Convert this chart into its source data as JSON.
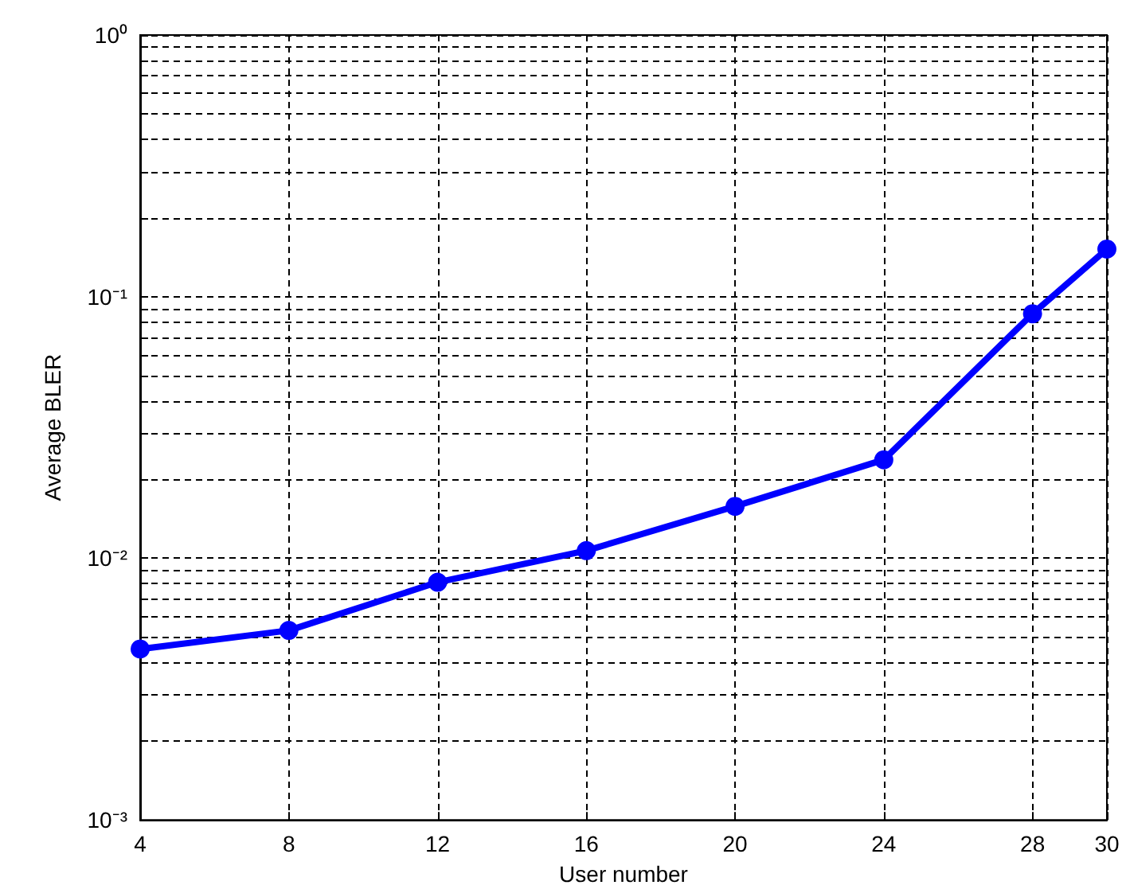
{
  "chart_data": {
    "type": "line",
    "xlabel": "User number",
    "ylabel": "Average BLER",
    "log": "y",
    "grid": true,
    "marker": "circle",
    "line_style": "solid",
    "x": [
      4,
      8,
      12,
      16,
      20,
      24,
      28,
      30
    ],
    "series": [
      {
        "color": "#0000ff",
        "values": [
          0.0045,
          0.0053,
          0.0081,
          0.0107,
          0.0158,
          0.0238,
          0.086,
          0.152
        ]
      }
    ],
    "xlim": [
      4,
      30
    ],
    "xticks": [
      4,
      8,
      12,
      16,
      20,
      24,
      28,
      30
    ],
    "ylim": [
      0.001,
      1
    ],
    "yticks": [
      {
        "value": 0.001,
        "label": "10⁻³"
      },
      {
        "value": 0.002,
        "label": null
      },
      {
        "value": 0.003,
        "label": null
      },
      {
        "value": 0.004,
        "label": null
      },
      {
        "value": 0.005,
        "label": null
      },
      {
        "value": 0.006,
        "label": null
      },
      {
        "value": 0.007,
        "label": null
      },
      {
        "value": 0.008,
        "label": null
      },
      {
        "value": 0.009,
        "label": null
      },
      {
        "value": 0.01,
        "label": "10⁻²"
      },
      {
        "value": 0.02,
        "label": null
      },
      {
        "value": 0.03,
        "label": null
      },
      {
        "value": 0.04,
        "label": null
      },
      {
        "value": 0.05,
        "label": null
      },
      {
        "value": 0.06,
        "label": null
      },
      {
        "value": 0.07,
        "label": null
      },
      {
        "value": 0.08,
        "label": null
      },
      {
        "value": 0.09,
        "label": null
      },
      {
        "value": 0.1,
        "label": "10⁻¹"
      },
      {
        "value": 0.2,
        "label": null
      },
      {
        "value": 0.3,
        "label": null
      },
      {
        "value": 0.4,
        "label": null
      },
      {
        "value": 0.5,
        "label": null
      },
      {
        "value": 0.6,
        "label": null
      },
      {
        "value": 0.7,
        "label": null
      },
      {
        "value": 0.8,
        "label": null
      },
      {
        "value": 0.9,
        "label": null
      },
      {
        "value": 1,
        "label": "10⁰"
      }
    ]
  }
}
